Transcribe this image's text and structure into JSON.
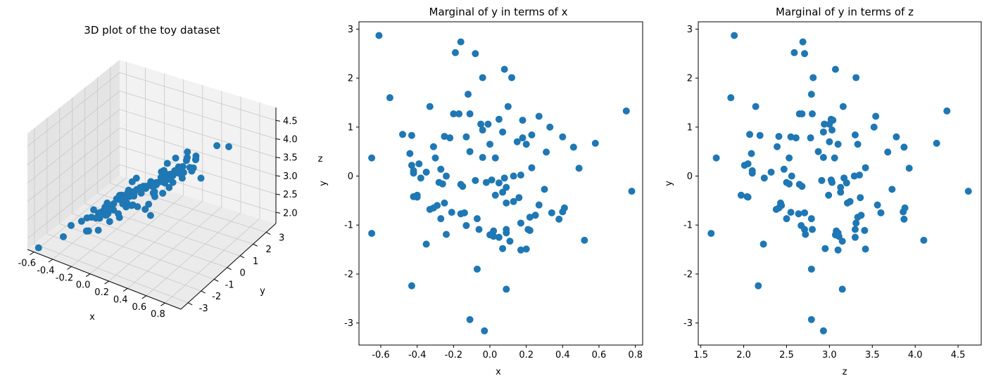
{
  "colors": {
    "marker": "#1f77b4",
    "pane": "#f2f2f2",
    "pane_dark": "#e6e6e6",
    "grid": "#c8c8c8",
    "axis": "#000000"
  },
  "chart_data": [
    {
      "type": "scatter3d",
      "title": "3D plot of the toy dataset",
      "xlabel": "x",
      "ylabel": "y",
      "zlabel": "z",
      "x_ticks": [
        "-0.6",
        "-0.4",
        "-0.2",
        "0.0",
        "0.2",
        "0.4",
        "0.6",
        "0.8"
      ],
      "y_ticks": [
        "-3",
        "-2",
        "-1",
        "0",
        "1",
        "2",
        "3"
      ],
      "z_ticks": [
        "2.0",
        "2.5",
        "3.0",
        "3.5",
        "4.0",
        "4.5"
      ],
      "xlim": [
        -0.7,
        0.8
      ],
      "ylim": [
        -3.3,
        3.0
      ],
      "zlim": [
        1.8,
        4.6
      ],
      "grid": true
    },
    {
      "type": "scatter",
      "title": "Marginal of y in terms of x",
      "xlabel": "x",
      "ylabel": "y",
      "xlim": [
        -0.72,
        0.84
      ],
      "ylim": [
        -3.45,
        3.15
      ],
      "x_ticks": [
        "-0.6",
        "-0.4",
        "-0.2",
        "0.0",
        "0.2",
        "0.4",
        "0.6",
        "0.8"
      ],
      "y_ticks": [
        "-3",
        "-2",
        "-1",
        "0",
        "1",
        "2",
        "3"
      ],
      "x_tick_values": [
        -0.6,
        -0.4,
        -0.2,
        0.0,
        0.2,
        0.4,
        0.6,
        0.8
      ],
      "y_tick_values": [
        -3,
        -2,
        -1,
        0,
        1,
        2,
        3
      ],
      "points": [
        [
          -0.61,
          2.87
        ],
        [
          -0.19,
          2.52
        ],
        [
          -0.16,
          2.74
        ],
        [
          -0.08,
          2.5
        ],
        [
          0.08,
          2.18
        ],
        [
          -0.04,
          2.01
        ],
        [
          0.12,
          2.01
        ],
        [
          -0.55,
          1.6
        ],
        [
          -0.12,
          1.67
        ],
        [
          -0.33,
          1.42
        ],
        [
          0.1,
          1.42
        ],
        [
          -0.2,
          1.27
        ],
        [
          -0.17,
          1.27
        ],
        [
          -0.11,
          1.27
        ],
        [
          0.75,
          1.33
        ],
        [
          0.27,
          1.22
        ],
        [
          0.05,
          1.16
        ],
        [
          0.18,
          1.14
        ],
        [
          -0.05,
          1.06
        ],
        [
          -0.01,
          1.06
        ],
        [
          0.33,
          1.0
        ],
        [
          -0.48,
          0.85
        ],
        [
          -0.43,
          0.83
        ],
        [
          -0.25,
          0.81
        ],
        [
          -0.13,
          0.8
        ],
        [
          -0.04,
          0.94
        ],
        [
          0.07,
          0.9
        ],
        [
          0.23,
          0.84
        ],
        [
          -0.22,
          0.78
        ],
        [
          0.18,
          0.78
        ],
        [
          0.15,
          0.7
        ],
        [
          0.4,
          0.8
        ],
        [
          0.58,
          0.67
        ],
        [
          0.46,
          0.59
        ],
        [
          0.2,
          0.65
        ],
        [
          -0.31,
          0.6
        ],
        [
          -0.11,
          0.5
        ],
        [
          0.0,
          0.65
        ],
        [
          0.31,
          0.49
        ],
        [
          -0.44,
          0.46
        ],
        [
          -0.3,
          0.37
        ],
        [
          -0.04,
          0.38
        ],
        [
          0.03,
          0.37
        ],
        [
          -0.65,
          0.37
        ],
        [
          -0.43,
          0.22
        ],
        [
          -0.39,
          0.25
        ],
        [
          -0.27,
          0.14
        ],
        [
          -0.24,
          0.0
        ],
        [
          -0.42,
          0.06
        ],
        [
          -0.42,
          0.11
        ],
        [
          -0.35,
          0.08
        ],
        [
          0.23,
          0.17
        ],
        [
          0.49,
          0.16
        ],
        [
          -0.08,
          -0.09
        ],
        [
          -0.02,
          -0.13
        ],
        [
          0.01,
          -0.08
        ],
        [
          0.05,
          -0.14
        ],
        [
          0.08,
          -0.04
        ],
        [
          0.09,
          -0.23
        ],
        [
          0.13,
          0.0
        ],
        [
          0.17,
          0.02
        ],
        [
          -0.28,
          -0.13
        ],
        [
          -0.26,
          -0.16
        ],
        [
          -0.16,
          -0.17
        ],
        [
          -0.15,
          -0.21
        ],
        [
          -0.38,
          -0.04
        ],
        [
          -0.4,
          -0.39
        ],
        [
          -0.42,
          -0.42
        ],
        [
          -0.4,
          -0.43
        ],
        [
          -0.29,
          -0.6
        ],
        [
          -0.25,
          -0.55
        ],
        [
          0.07,
          -0.33
        ],
        [
          0.03,
          -0.39
        ],
        [
          0.09,
          -0.55
        ],
        [
          0.13,
          -0.52
        ],
        [
          0.16,
          -0.44
        ],
        [
          0.3,
          -0.27
        ],
        [
          0.27,
          -0.59
        ],
        [
          0.78,
          -0.31
        ],
        [
          -0.33,
          -0.68
        ],
        [
          -0.31,
          -0.65
        ],
        [
          -0.21,
          -0.74
        ],
        [
          -0.16,
          -0.77
        ],
        [
          -0.14,
          -0.75
        ],
        [
          0.22,
          -0.84
        ],
        [
          0.25,
          -0.8
        ],
        [
          0.34,
          -0.75
        ],
        [
          0.38,
          -0.88
        ],
        [
          0.41,
          -0.65
        ],
        [
          0.4,
          -0.73
        ],
        [
          -0.27,
          -0.87
        ],
        [
          -0.07,
          -0.87
        ],
        [
          -0.13,
          -1.01
        ],
        [
          -0.06,
          -1.09
        ],
        [
          0.09,
          -1.09
        ],
        [
          0.02,
          -1.12
        ],
        [
          0.09,
          -1.16
        ],
        [
          0.17,
          -0.96
        ],
        [
          0.21,
          -1.09
        ],
        [
          0.22,
          -1.11
        ],
        [
          0.0,
          -1.2
        ],
        [
          0.02,
          -1.23
        ],
        [
          0.05,
          -1.25
        ],
        [
          0.11,
          -1.33
        ],
        [
          0.52,
          -1.31
        ],
        [
          -0.24,
          -1.19
        ],
        [
          -0.65,
          -1.17
        ],
        [
          -0.35,
          -1.39
        ],
        [
          0.07,
          -1.48
        ],
        [
          0.17,
          -1.51
        ],
        [
          0.2,
          -1.49
        ],
        [
          -0.07,
          -1.9
        ],
        [
          -0.43,
          -2.24
        ],
        [
          0.09,
          -2.31
        ],
        [
          -0.11,
          -2.93
        ],
        [
          -0.03,
          -3.16
        ]
      ]
    },
    {
      "type": "scatter",
      "title": "Marginal of y in terms of z",
      "xlabel": "z",
      "ylabel": "y",
      "xlim": [
        1.47,
        4.77
      ],
      "ylim": [
        -3.45,
        3.15
      ],
      "x_ticks": [
        "1.5",
        "2.0",
        "2.5",
        "3.0",
        "3.5",
        "4.0",
        "4.5"
      ],
      "y_ticks": [
        "-3",
        "-2",
        "-1",
        "0",
        "1",
        "2",
        "3"
      ],
      "x_tick_values": [
        1.5,
        2.0,
        2.5,
        3.0,
        3.5,
        4.0,
        4.5
      ],
      "y_tick_values": [
        -3,
        -2,
        -1,
        0,
        1,
        2,
        3
      ],
      "points": [
        [
          1.89,
          2.87
        ],
        [
          2.59,
          2.52
        ],
        [
          2.69,
          2.74
        ],
        [
          2.71,
          2.5
        ],
        [
          3.07,
          2.18
        ],
        [
          2.81,
          2.01
        ],
        [
          3.31,
          2.01
        ],
        [
          1.85,
          1.6
        ],
        [
          2.79,
          1.67
        ],
        [
          2.14,
          1.42
        ],
        [
          3.16,
          1.42
        ],
        [
          2.65,
          1.27
        ],
        [
          2.68,
          1.27
        ],
        [
          2.8,
          1.27
        ],
        [
          4.37,
          1.33
        ],
        [
          3.54,
          1.22
        ],
        [
          3.02,
          1.16
        ],
        [
          3.04,
          1.14
        ],
        [
          2.94,
          1.06
        ],
        [
          3.0,
          1.06
        ],
        [
          3.52,
          1.0
        ],
        [
          2.07,
          0.85
        ],
        [
          2.19,
          0.83
        ],
        [
          2.41,
          0.81
        ],
        [
          2.55,
          0.8
        ],
        [
          3.03,
          0.94
        ],
        [
          2.93,
          0.9
        ],
        [
          3.3,
          0.84
        ],
        [
          2.61,
          0.78
        ],
        [
          2.78,
          0.78
        ],
        [
          3.0,
          0.7
        ],
        [
          3.78,
          0.8
        ],
        [
          4.25,
          0.67
        ],
        [
          3.87,
          0.59
        ],
        [
          3.33,
          0.65
        ],
        [
          2.39,
          0.6
        ],
        [
          2.87,
          0.5
        ],
        [
          3.1,
          0.65
        ],
        [
          3.68,
          0.49
        ],
        [
          2.09,
          0.46
        ],
        [
          2.53,
          0.37
        ],
        [
          2.93,
          0.38
        ],
        [
          3.06,
          0.37
        ],
        [
          1.68,
          0.37
        ],
        [
          2.01,
          0.22
        ],
        [
          2.05,
          0.25
        ],
        [
          2.47,
          0.14
        ],
        [
          2.56,
          0.0
        ],
        [
          2.1,
          0.06
        ],
        [
          2.1,
          0.11
        ],
        [
          2.32,
          0.08
        ],
        [
          3.42,
          0.17
        ],
        [
          3.93,
          0.16
        ],
        [
          2.91,
          -0.09
        ],
        [
          3.03,
          -0.13
        ],
        [
          3.02,
          -0.08
        ],
        [
          3.2,
          -0.14
        ],
        [
          3.17,
          -0.04
        ],
        [
          3.13,
          -0.23
        ],
        [
          3.29,
          0.0
        ],
        [
          3.35,
          0.02
        ],
        [
          2.5,
          -0.13
        ],
        [
          2.53,
          -0.16
        ],
        [
          2.65,
          -0.17
        ],
        [
          2.68,
          -0.21
        ],
        [
          2.24,
          -0.04
        ],
        [
          1.97,
          -0.39
        ],
        [
          2.04,
          -0.42
        ],
        [
          2.05,
          -0.43
        ],
        [
          2.44,
          -0.6
        ],
        [
          2.43,
          -0.55
        ],
        [
          3.13,
          -0.33
        ],
        [
          2.99,
          -0.39
        ],
        [
          3.21,
          -0.55
        ],
        [
          3.24,
          -0.52
        ],
        [
          3.36,
          -0.44
        ],
        [
          3.73,
          -0.27
        ],
        [
          3.56,
          -0.59
        ],
        [
          4.62,
          -0.31
        ],
        [
          2.38,
          -0.68
        ],
        [
          2.41,
          -0.65
        ],
        [
          2.55,
          -0.74
        ],
        [
          2.64,
          -0.77
        ],
        [
          2.71,
          -0.75
        ],
        [
          3.33,
          -0.84
        ],
        [
          3.37,
          -0.8
        ],
        [
          3.6,
          -0.75
        ],
        [
          3.87,
          -0.88
        ],
        [
          3.88,
          -0.65
        ],
        [
          3.86,
          -0.73
        ],
        [
          2.5,
          -0.87
        ],
        [
          2.79,
          -0.87
        ],
        [
          2.67,
          -1.01
        ],
        [
          2.71,
          -1.09
        ],
        [
          2.8,
          -1.09
        ],
        [
          3.08,
          -1.12
        ],
        [
          3.1,
          -1.16
        ],
        [
          3.31,
          -0.96
        ],
        [
          3.3,
          -1.09
        ],
        [
          3.41,
          -1.11
        ],
        [
          3.07,
          -1.2
        ],
        [
          3.11,
          -1.23
        ],
        [
          3.3,
          -1.25
        ],
        [
          3.15,
          -1.33
        ],
        [
          4.1,
          -1.31
        ],
        [
          2.72,
          -1.19
        ],
        [
          1.62,
          -1.17
        ],
        [
          2.23,
          -1.39
        ],
        [
          2.95,
          -1.48
        ],
        [
          3.1,
          -1.51
        ],
        [
          3.42,
          -1.49
        ],
        [
          2.79,
          -1.9
        ],
        [
          2.17,
          -2.24
        ],
        [
          3.15,
          -2.31
        ],
        [
          2.79,
          -2.93
        ],
        [
          2.93,
          -3.16
        ]
      ]
    }
  ]
}
